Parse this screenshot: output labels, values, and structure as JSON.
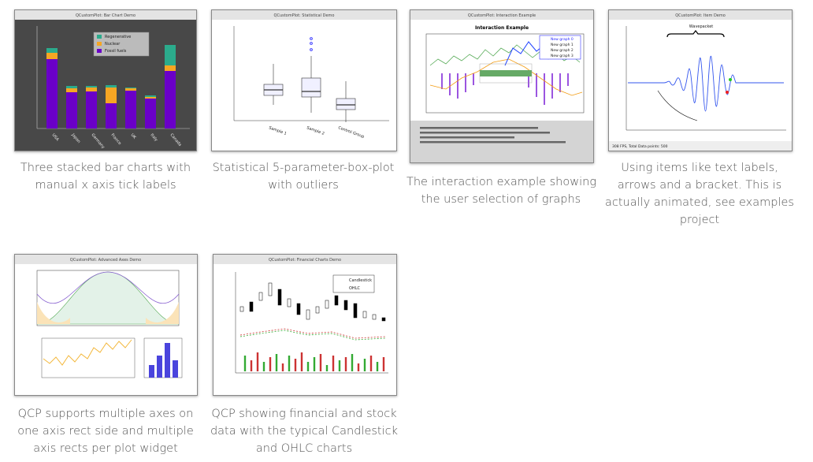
{
  "gallery": [
    {
      "window_title": "QCustomPlot: Bar Chart Demo",
      "caption": [
        "Three stacked bar charts with",
        "manual x axis tick labels"
      ],
      "labels": [
        "Regenerative",
        "Nuclear",
        "Fossil fuels",
        "USA",
        "Japan",
        "Germany",
        "France",
        "UK",
        "Italy",
        "Canada"
      ]
    },
    {
      "window_title": "QCustomPlot: Statistical Demo",
      "caption": [
        "Statistical 5-parameter-box-plot",
        "with outliers"
      ],
      "labels": [
        "Sample 1",
        "Sample 2",
        "Control Group"
      ]
    },
    {
      "window_title": "QCustomPlot: Interaction Example",
      "caption": [
        "The interaction example showing",
        "the user selection of graphs"
      ],
      "labels": [
        "Interaction Example",
        "New graph 0",
        "New graph 1",
        "New graph 2",
        "New graph 3"
      ]
    },
    {
      "window_title": "QCustomPlot: Item Demo",
      "caption": [
        "Using items like text labels,",
        "arrows and a bracket. This is",
        "actually animated, see examples",
        "project"
      ],
      "labels": [
        "Wavepacket",
        "308 FPS, Total Data points: 500"
      ]
    },
    {
      "window_title": "QCustomPlot: Advanced Axes Demo",
      "caption": [
        "QCP supports multiple axes on",
        "one axis rect side and multiple",
        "axis rects per plot widget"
      ],
      "labels": []
    },
    {
      "window_title": "QCustomPlot: Financial Charts Demo",
      "caption": [
        "QCP showing financial and stock",
        "data with the typical Candlestick",
        "and OHLC charts"
      ],
      "labels": [
        "Candlestick",
        "OHLC"
      ]
    }
  ]
}
